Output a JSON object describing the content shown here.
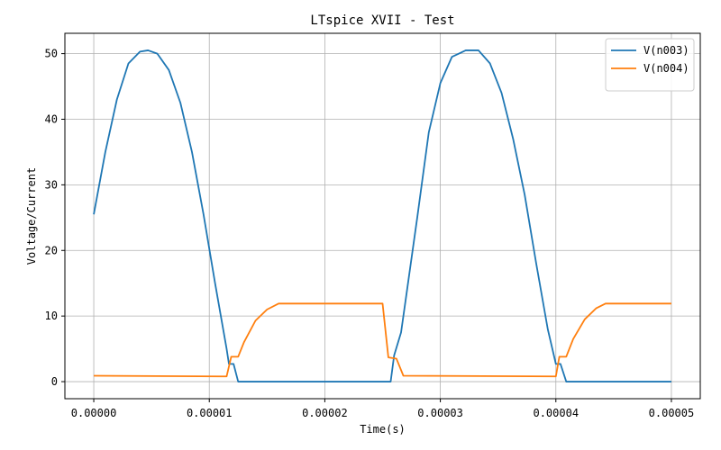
{
  "chart_data": {
    "type": "line",
    "title": "LTspice XVII - Test",
    "xlabel": "Time(s)",
    "ylabel": "Voltage/Current",
    "xlim": [
      -2.5e-06,
      5.25e-05
    ],
    "ylim": [
      -2.6,
      53.1
    ],
    "xticks": [
      0,
      1e-05,
      2e-05,
      3e-05,
      4e-05,
      5e-05
    ],
    "xtick_labels": [
      "0.00000",
      "0.00001",
      "0.00002",
      "0.00003",
      "0.00004",
      "0.00005"
    ],
    "yticks": [
      0,
      10,
      20,
      30,
      40,
      50
    ],
    "ytick_labels": [
      "0",
      "10",
      "20",
      "30",
      "40",
      "50"
    ],
    "grid": true,
    "legend_position": "top-right",
    "series": [
      {
        "name": "V(n003)",
        "color": "#1f77b4",
        "points": [
          [
            0.0,
            25.5
          ],
          [
            1e-06,
            35.0
          ],
          [
            2e-06,
            43.0
          ],
          [
            3e-06,
            48.5
          ],
          [
            4e-06,
            50.3
          ],
          [
            4.7e-06,
            50.5
          ],
          [
            5.5e-06,
            50.0
          ],
          [
            6.5e-06,
            47.5
          ],
          [
            7.5e-06,
            42.5
          ],
          [
            8.5e-06,
            35.0
          ],
          [
            9.5e-06,
            25.5
          ],
          [
            1.05e-05,
            15.0
          ],
          [
            1.15e-05,
            5.0
          ],
          [
            1.17e-05,
            2.7
          ],
          [
            1.21e-05,
            2.7
          ],
          [
            1.25e-05,
            0.0
          ],
          [
            1.3e-05,
            0.0
          ],
          [
            2.5e-05,
            0.0
          ],
          [
            2.57e-05,
            0.0
          ],
          [
            2.6e-05,
            4.0
          ],
          [
            2.66e-05,
            7.5
          ],
          [
            2.7e-05,
            12.5
          ],
          [
            2.8e-05,
            25.0
          ],
          [
            2.9e-05,
            38.0
          ],
          [
            3e-05,
            45.5
          ],
          [
            3.1e-05,
            49.5
          ],
          [
            3.22e-05,
            50.5
          ],
          [
            3.33e-05,
            50.5
          ],
          [
            3.43e-05,
            48.5
          ],
          [
            3.53e-05,
            44.0
          ],
          [
            3.63e-05,
            37.0
          ],
          [
            3.73e-05,
            28.5
          ],
          [
            3.83e-05,
            18.0
          ],
          [
            3.93e-05,
            8.0
          ],
          [
            4e-05,
            2.7
          ],
          [
            4.04e-05,
            2.7
          ],
          [
            4.09e-05,
            0.0
          ],
          [
            4.2e-05,
            0.0
          ],
          [
            5e-05,
            0.0
          ]
        ]
      },
      {
        "name": "V(n004)",
        "color": "#ff7f0e",
        "points": [
          [
            0.0,
            0.9
          ],
          [
            1.1e-05,
            0.8
          ],
          [
            1.15e-05,
            0.8
          ],
          [
            1.19e-05,
            3.8
          ],
          [
            1.25e-05,
            3.8
          ],
          [
            1.3e-05,
            6.0
          ],
          [
            1.4e-05,
            9.3
          ],
          [
            1.5e-05,
            11.0
          ],
          [
            1.6e-05,
            11.9
          ],
          [
            2.5e-05,
            11.9
          ],
          [
            2.55e-05,
            3.7
          ],
          [
            2.62e-05,
            3.5
          ],
          [
            2.68e-05,
            0.9
          ],
          [
            4e-05,
            0.8
          ],
          [
            4.03e-05,
            3.8
          ],
          [
            4.09e-05,
            3.8
          ],
          [
            4.15e-05,
            6.5
          ],
          [
            4.25e-05,
            9.5
          ],
          [
            4.35e-05,
            11.2
          ],
          [
            4.43e-05,
            11.9
          ],
          [
            5e-05,
            11.9
          ]
        ]
      }
    ]
  }
}
